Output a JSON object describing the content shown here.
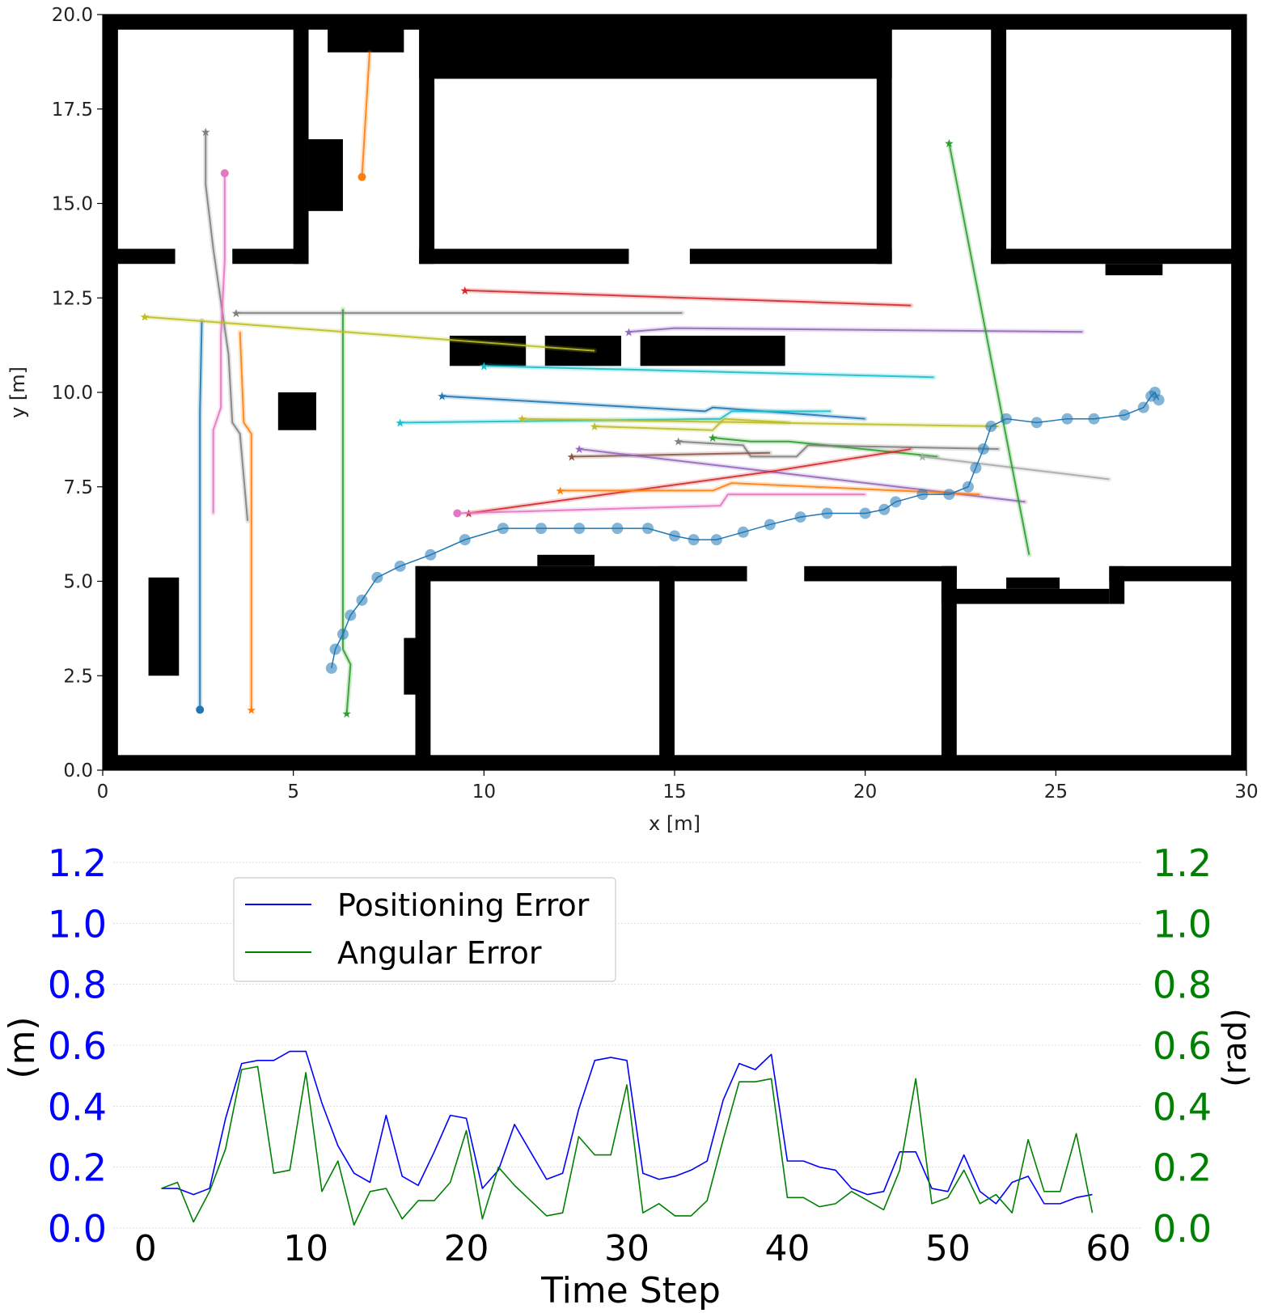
{
  "chart_data": [
    {
      "type": "scatter",
      "title": "",
      "xlabel": "x [m]",
      "ylabel": "y [m]",
      "xlim": [
        0,
        30
      ],
      "ylim": [
        0,
        20
      ],
      "xticks": [
        "0",
        "5",
        "10",
        "15",
        "20",
        "25",
        "30"
      ],
      "yticks": [
        "0.0",
        "2.5",
        "5.0",
        "7.5",
        "10.0",
        "12.5",
        "15.0",
        "17.5",
        "20.0"
      ],
      "map_obstacles": [
        {
          "x0": 0,
          "x1": 0.4,
          "y0": 0,
          "y1": 20
        },
        {
          "x0": 29.6,
          "x1": 30,
          "y0": 0,
          "y1": 20
        },
        {
          "x0": 0,
          "x1": 30,
          "y0": 19.6,
          "y1": 20
        },
        {
          "x0": 0,
          "x1": 30,
          "y0": 0,
          "y1": 0.4
        },
        {
          "x0": 0,
          "x1": 1.9,
          "y0": 13.4,
          "y1": 13.8
        },
        {
          "x0": 3.4,
          "x1": 5.4,
          "y0": 13.4,
          "y1": 13.8
        },
        {
          "x0": 5.0,
          "x1": 5.4,
          "y0": 13.4,
          "y1": 20
        },
        {
          "x0": 5.4,
          "x1": 6.3,
          "y0": 14.8,
          "y1": 16.7
        },
        {
          "x0": 5.9,
          "x1": 7.9,
          "y0": 19.0,
          "y1": 20
        },
        {
          "x0": 8.3,
          "x1": 8.7,
          "y0": 13.4,
          "y1": 20
        },
        {
          "x0": 8.3,
          "x1": 20.7,
          "y0": 18.3,
          "y1": 20
        },
        {
          "x0": 20.3,
          "x1": 20.7,
          "y0": 13.4,
          "y1": 20
        },
        {
          "x0": 8.3,
          "x1": 13.8,
          "y0": 13.4,
          "y1": 13.8
        },
        {
          "x0": 15.4,
          "x1": 20.7,
          "y0": 13.4,
          "y1": 13.8
        },
        {
          "x0": 23.3,
          "x1": 23.7,
          "y0": 13.4,
          "y1": 20
        },
        {
          "x0": 23.3,
          "x1": 30,
          "y0": 13.4,
          "y1": 13.8
        },
        {
          "x0": 26.3,
          "x1": 27.8,
          "y0": 13.1,
          "y1": 13.4
        },
        {
          "x0": 9.1,
          "x1": 11.1,
          "y0": 10.7,
          "y1": 11.5
        },
        {
          "x0": 11.6,
          "x1": 13.6,
          "y0": 10.7,
          "y1": 11.5
        },
        {
          "x0": 14.1,
          "x1": 17.9,
          "y0": 10.7,
          "y1": 11.5
        },
        {
          "x0": 4.6,
          "x1": 5.6,
          "y0": 9.0,
          "y1": 10.0
        },
        {
          "x0": 1.2,
          "x1": 2.0,
          "y0": 2.5,
          "y1": 5.1
        },
        {
          "x0": 8.2,
          "x1": 8.6,
          "y0": 0,
          "y1": 5.4
        },
        {
          "x0": 7.9,
          "x1": 8.2,
          "y0": 2.0,
          "y1": 3.5
        },
        {
          "x0": 8.2,
          "x1": 16.9,
          "y0": 5.0,
          "y1": 5.4
        },
        {
          "x0": 11.4,
          "x1": 12.9,
          "y0": 5.4,
          "y1": 5.7
        },
        {
          "x0": 14.6,
          "x1": 15.0,
          "y0": 0,
          "y1": 5.4
        },
        {
          "x0": 18.4,
          "x1": 22.4,
          "y0": 5.0,
          "y1": 5.4
        },
        {
          "x0": 22.0,
          "x1": 22.4,
          "y0": 0,
          "y1": 5.4
        },
        {
          "x0": 22.0,
          "x1": 26.4,
          "y0": 4.4,
          "y1": 4.8
        },
        {
          "x0": 22.0,
          "x1": 22.4,
          "y0": 4.4,
          "y1": 5.4
        },
        {
          "x0": 23.7,
          "x1": 25.1,
          "y0": 4.8,
          "y1": 5.1
        },
        {
          "x0": 26.4,
          "x1": 26.8,
          "y0": 4.4,
          "y1": 5.4
        },
        {
          "x0": 26.4,
          "x1": 30,
          "y0": 5.0,
          "y1": 5.4
        }
      ],
      "trajectories": [
        {
          "color": "#1f77b4",
          "marker": "circle",
          "points": [
            [
              2.55,
              1.6
            ],
            [
              2.55,
              9.5
            ],
            [
              2.6,
              11.9
            ]
          ]
        },
        {
          "color": "#7f7f7f",
          "marker": "star",
          "points": [
            [
              2.7,
              16.9
            ],
            [
              2.7,
              15.5
            ],
            [
              2.9,
              13.8
            ],
            [
              3.3,
              11.0
            ],
            [
              3.4,
              9.2
            ],
            [
              3.6,
              8.9
            ],
            [
              3.8,
              6.6
            ]
          ]
        },
        {
          "color": "#e377c2",
          "marker": "circle",
          "points": [
            [
              3.2,
              15.8
            ],
            [
              3.2,
              13.5
            ],
            [
              3.1,
              11.5
            ],
            [
              3.1,
              9.6
            ],
            [
              2.9,
              9.0
            ],
            [
              2.9,
              6.8
            ]
          ]
        },
        {
          "color": "#ff7f0e",
          "marker": "star",
          "points": [
            [
              3.9,
              1.6
            ],
            [
              3.9,
              8.9
            ],
            [
              3.7,
              9.2
            ],
            [
              3.6,
              11.6
            ]
          ]
        },
        {
          "color": "#2ca02c",
          "marker": "star",
          "points": [
            [
              6.4,
              1.5
            ],
            [
              6.5,
              2.8
            ],
            [
              6.3,
              3.2
            ],
            [
              6.3,
              12.2
            ]
          ]
        },
        {
          "color": "#ff7f0e",
          "marker": "circle",
          "points": [
            [
              6.8,
              15.7
            ],
            [
              7.0,
              19.0
            ]
          ]
        },
        {
          "color": "#bcbd22",
          "marker": "star",
          "points": [
            [
              1.1,
              12.0
            ],
            [
              12.9,
              11.1
            ]
          ]
        },
        {
          "color": "#7f7f7f",
          "marker": "star",
          "points": [
            [
              3.5,
              12.1
            ],
            [
              15.2,
              12.1
            ]
          ]
        },
        {
          "color": "#d62728",
          "marker": "star",
          "points": [
            [
              9.5,
              12.7
            ],
            [
              21.2,
              12.3
            ]
          ]
        },
        {
          "color": "#9467bd",
          "marker": "star",
          "points": [
            [
              13.8,
              11.6
            ],
            [
              15.0,
              11.7
            ],
            [
              25.7,
              11.6
            ]
          ]
        },
        {
          "color": "#17becf",
          "marker": "star",
          "points": [
            [
              10.0,
              10.7
            ],
            [
              21.8,
              10.4
            ]
          ]
        },
        {
          "color": "#1f77b4",
          "marker": "star",
          "points": [
            [
              8.9,
              9.9
            ],
            [
              15.8,
              9.5
            ],
            [
              16.0,
              9.6
            ],
            [
              20.0,
              9.3
            ]
          ]
        },
        {
          "color": "#17becf",
          "marker": "star",
          "points": [
            [
              7.8,
              9.2
            ],
            [
              16.2,
              9.3
            ],
            [
              16.5,
              9.5
            ],
            [
              19.1,
              9.5
            ]
          ]
        },
        {
          "color": "#bcbd22",
          "marker": "star",
          "points": [
            [
              11.0,
              9.3
            ],
            [
              23.5,
              9.1
            ]
          ]
        },
        {
          "color": "#bcbd22",
          "marker": "star",
          "points": [
            [
              12.9,
              9.1
            ],
            [
              16.0,
              9.0
            ],
            [
              16.3,
              9.3
            ],
            [
              18.0,
              9.2
            ]
          ]
        },
        {
          "color": "#2ca02c",
          "marker": "star",
          "points": [
            [
              16.0,
              8.8
            ],
            [
              17.0,
              8.7
            ],
            [
              18.0,
              8.7
            ],
            [
              21.9,
              8.3
            ]
          ]
        },
        {
          "color": "#7f7f7f",
          "marker": "star",
          "points": [
            [
              15.1,
              8.7
            ],
            [
              16.8,
              8.6
            ],
            [
              17.0,
              8.3
            ],
            [
              18.2,
              8.3
            ],
            [
              18.5,
              8.6
            ],
            [
              23.5,
              8.5
            ]
          ]
        },
        {
          "color": "#8c564b",
          "marker": "star",
          "points": [
            [
              12.3,
              8.3
            ],
            [
              17.5,
              8.4
            ]
          ]
        },
        {
          "color": "#9467bd",
          "marker": "star",
          "points": [
            [
              12.5,
              8.5
            ],
            [
              24.2,
              7.1
            ]
          ]
        },
        {
          "color": "#aaaaaa",
          "marker": "star",
          "points": [
            [
              21.5,
              8.3
            ],
            [
              26.4,
              7.7
            ]
          ]
        },
        {
          "color": "#d62728",
          "marker": "star",
          "points": [
            [
              9.6,
              6.8
            ],
            [
              17.5,
              7.9
            ],
            [
              21.2,
              8.5
            ]
          ]
        },
        {
          "color": "#ff7f0e",
          "marker": "star",
          "points": [
            [
              12.0,
              7.4
            ],
            [
              16.0,
              7.4
            ],
            [
              16.5,
              7.6
            ],
            [
              23.0,
              7.3
            ]
          ]
        },
        {
          "color": "#e377c2",
          "marker": "circle",
          "points": [
            [
              9.3,
              6.8
            ],
            [
              16.2,
              7.0
            ],
            [
              16.4,
              7.3
            ],
            [
              20.0,
              7.3
            ]
          ]
        },
        {
          "color": "#2ca02c",
          "marker": "star",
          "points": [
            [
              22.2,
              16.6
            ],
            [
              24.3,
              5.7
            ]
          ]
        }
      ],
      "robot_path": {
        "color": "#1f77b4",
        "points": [
          [
            6.0,
            2.7
          ],
          [
            6.1,
            3.2
          ],
          [
            6.3,
            3.6
          ],
          [
            6.5,
            4.1
          ],
          [
            6.8,
            4.5
          ],
          [
            7.2,
            5.1
          ],
          [
            7.8,
            5.4
          ],
          [
            8.6,
            5.7
          ],
          [
            9.5,
            6.1
          ],
          [
            10.5,
            6.4
          ],
          [
            11.5,
            6.4
          ],
          [
            12.5,
            6.4
          ],
          [
            13.5,
            6.4
          ],
          [
            14.3,
            6.4
          ],
          [
            15.0,
            6.2
          ],
          [
            15.5,
            6.1
          ],
          [
            16.1,
            6.1
          ],
          [
            16.8,
            6.3
          ],
          [
            17.5,
            6.5
          ],
          [
            18.3,
            6.7
          ],
          [
            19.0,
            6.8
          ],
          [
            20.0,
            6.8
          ],
          [
            20.5,
            6.9
          ],
          [
            20.8,
            7.1
          ],
          [
            21.5,
            7.3
          ],
          [
            22.2,
            7.3
          ],
          [
            22.7,
            7.5
          ],
          [
            22.9,
            8.0
          ],
          [
            23.1,
            8.5
          ],
          [
            23.3,
            9.1
          ],
          [
            23.7,
            9.3
          ],
          [
            24.5,
            9.2
          ],
          [
            25.3,
            9.3
          ],
          [
            26.0,
            9.3
          ],
          [
            26.8,
            9.4
          ],
          [
            27.3,
            9.6
          ],
          [
            27.5,
            9.9
          ],
          [
            27.6,
            10.0
          ],
          [
            27.7,
            9.8
          ]
        ]
      }
    },
    {
      "type": "line",
      "title": "",
      "xlabel": "Time Step",
      "ylabel": "(m)",
      "y2label": "(rad)",
      "xlim": [
        -2,
        62
      ],
      "ylim": [
        0,
        1.2
      ],
      "y2lim": [
        0,
        1.2
      ],
      "xticks": [
        "0",
        "10",
        "20",
        "30",
        "40",
        "50",
        "60"
      ],
      "yticks": [
        "0.0",
        "0.2",
        "0.4",
        "0.6",
        "0.8",
        "1.0",
        "1.2"
      ],
      "y2ticks": [
        "0.0",
        "0.2",
        "0.4",
        "0.6",
        "0.8",
        "1.0",
        "1.2"
      ],
      "grid": true,
      "legend_position": "upper-left",
      "x": [
        1,
        2,
        3,
        4,
        5,
        6,
        7,
        8,
        9,
        10,
        11,
        12,
        13,
        14,
        15,
        16,
        17,
        18,
        19,
        20,
        21,
        22,
        23,
        24,
        25,
        26,
        27,
        28,
        29,
        30,
        31,
        32,
        33,
        34,
        35,
        36,
        37,
        38,
        39,
        40,
        41,
        42,
        43,
        44,
        45,
        46,
        47,
        48,
        49,
        50,
        51,
        52,
        53,
        54,
        55,
        56,
        57,
        58,
        59
      ],
      "series": [
        {
          "name": "Positioning Error",
          "axis": "left",
          "color": "#0000ff",
          "values": [
            0.13,
            0.13,
            0.11,
            0.13,
            0.36,
            0.54,
            0.55,
            0.55,
            0.58,
            0.58,
            0.41,
            0.27,
            0.18,
            0.15,
            0.37,
            0.17,
            0.14,
            0.25,
            0.37,
            0.36,
            0.13,
            0.19,
            0.34,
            0.25,
            0.16,
            0.18,
            0.39,
            0.55,
            0.56,
            0.55,
            0.18,
            0.16,
            0.17,
            0.19,
            0.22,
            0.42,
            0.54,
            0.52,
            0.57,
            0.22,
            0.22,
            0.2,
            0.19,
            0.13,
            0.11,
            0.12,
            0.25,
            0.25,
            0.13,
            0.12,
            0.24,
            0.12,
            0.08,
            0.15,
            0.17,
            0.08,
            0.08,
            0.1,
            0.11
          ]
        },
        {
          "name": "Angular Error",
          "axis": "right",
          "color": "#008000",
          "values": [
            0.13,
            0.15,
            0.02,
            0.12,
            0.26,
            0.52,
            0.53,
            0.18,
            0.19,
            0.51,
            0.12,
            0.22,
            0.01,
            0.12,
            0.13,
            0.03,
            0.09,
            0.09,
            0.15,
            0.32,
            0.03,
            0.2,
            0.14,
            0.09,
            0.04,
            0.05,
            0.3,
            0.24,
            0.24,
            0.47,
            0.05,
            0.08,
            0.04,
            0.04,
            0.09,
            0.29,
            0.48,
            0.48,
            0.49,
            0.1,
            0.1,
            0.07,
            0.08,
            0.12,
            0.09,
            0.06,
            0.19,
            0.49,
            0.08,
            0.1,
            0.19,
            0.08,
            0.11,
            0.05,
            0.29,
            0.12,
            0.12,
            0.31,
            0.05
          ]
        }
      ]
    }
  ]
}
